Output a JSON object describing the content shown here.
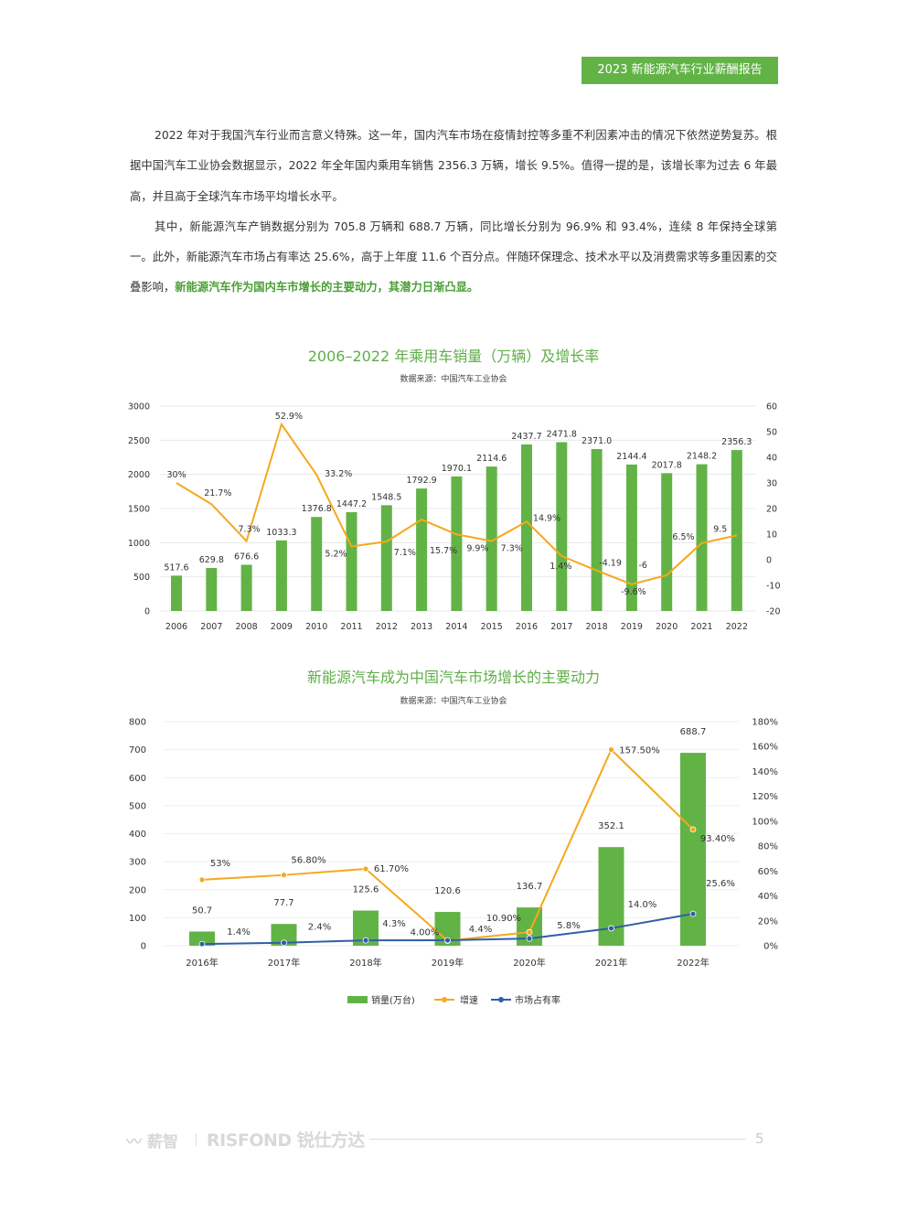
{
  "header": {
    "tag": "2023 新能源汽车行业薪酬报告"
  },
  "body": {
    "para1": "2022 年对于我国汽车行业而言意义特殊。这一年，国内汽车市场在疫情封控等多重不利因素冲击的情况下依然逆势复苏。根据中国汽车工业协会数据显示，2022 年全年国内乘用车销售 2356.3 万辆，增长 9.5%。值得一提的是，该增长率为过去 6 年最高，并且高于全球汽车市场平均增长水平。",
    "para2_plain": "其中，新能源汽车产销数据分别为 705.8 万辆和 688.7 万辆，同比增长分别为 96.9% 和 93.4%，连续 8 年保持全球第一。此外，新能源汽车市场占有率达 25.6%，高于上年度 11.6 个百分点。伴随环保理念、技术水平以及消费需求等多重因素的交叠影响，",
    "para2_bold": "新能源汽车作为国内车市增长的主要动力，其潜力日渐凸显。"
  },
  "colors": {
    "green": "#62b346",
    "orange": "#f5a81c",
    "blue": "#2f5ea8",
    "title_green": "#5fae48"
  },
  "chart_data": [
    {
      "type": "bar+line",
      "title": "2006–2022 年乘用车销量（万辆）及增长率",
      "source": "数据来源：中国汽车工业协会",
      "categories": [
        "2006",
        "2007",
        "2008",
        "2009",
        "2010",
        "2011",
        "2012",
        "2013",
        "2014",
        "2015",
        "2016",
        "2017",
        "2018",
        "2019",
        "2020",
        "2021",
        "2022"
      ],
      "bar_values": [
        517.6,
        629.8,
        676.6,
        1033.3,
        1376.8,
        1447.2,
        1548.5,
        1792.9,
        1970.1,
        2114.6,
        2437.7,
        2471.8,
        2371.0,
        2144.4,
        2017.8,
        2148.2,
        2356.3
      ],
      "bar_labels": [
        "517.6",
        "629.8",
        "676.6",
        "1033.3",
        "1376.8",
        "1447.2",
        "1548.5",
        "1792.9",
        "1970.1",
        "2114.6",
        "2437.7",
        "2471.8",
        "2371.0",
        "2144.4",
        "2017.8",
        "2148.2",
        "2356.3"
      ],
      "line_values": [
        30,
        21.7,
        7.3,
        52.9,
        33.2,
        5.2,
        7.1,
        15.7,
        9.9,
        7.3,
        14.9,
        1.4,
        -4.19,
        -9.6,
        -6,
        6.5,
        9.5
      ],
      "line_labels": [
        "30%",
        "21.7%",
        "7.3%",
        "52.9%",
        "33.2%",
        "5.2%",
        "7.1%",
        "15.7%",
        "9.9%",
        "7.3%",
        "14.9%",
        "1.4%",
        "-4.19",
        "-9.6%",
        "-6",
        "6.5%",
        "9.5"
      ],
      "y_left": {
        "range": [
          0,
          3000
        ],
        "ticks": [
          "0",
          "500",
          "1000",
          "1500",
          "2000",
          "2500",
          "3000"
        ]
      },
      "y_right": {
        "range": [
          -20,
          60
        ],
        "ticks": [
          "-20",
          "-10",
          "0",
          "10",
          "20",
          "30",
          "40",
          "50",
          "60"
        ]
      },
      "grid": true
    },
    {
      "type": "bar+line",
      "title": "新能源汽车成为中国汽车市场增长的主要动力",
      "source": "数据来源：中国汽车工业协会",
      "categories": [
        "2016年",
        "2017年",
        "2018年",
        "2019年",
        "2020年",
        "2021年",
        "2022年"
      ],
      "series": [
        {
          "name": "销量(万台)",
          "type": "bar",
          "axis": "left",
          "values": [
            50.7,
            77.7,
            125.6,
            120.6,
            136.7,
            352.1,
            688.7
          ],
          "labels": [
            "50.7",
            "77.7",
            "125.6",
            "120.6",
            "136.7",
            "352.1",
            "688.7"
          ]
        },
        {
          "name": "增速",
          "type": "line",
          "axis": "right",
          "values": [
            53,
            56.8,
            61.7,
            4.0,
            10.9,
            157.5,
            93.4
          ],
          "labels": [
            "53%",
            "56.80%",
            "61.70%",
            "4.00%",
            "10.90%",
            "157.50%",
            "93.40%"
          ]
        },
        {
          "name": "市场占有率",
          "type": "line",
          "axis": "right",
          "values": [
            1.4,
            2.4,
            4.3,
            4.4,
            5.8,
            14.0,
            25.6
          ],
          "labels": [
            "1.4%",
            "2.4%",
            "4.3%",
            "4.4%",
            "5.8%",
            "14.0%",
            "25.6%"
          ]
        }
      ],
      "y_left": {
        "range": [
          0,
          800
        ],
        "ticks": [
          "0",
          "100",
          "200",
          "300",
          "400",
          "500",
          "600",
          "700",
          "800"
        ]
      },
      "y_right": {
        "range": [
          0,
          180
        ],
        "ticks": [
          "0%",
          "20%",
          "40%",
          "60%",
          "80%",
          "100%",
          "120%",
          "140%",
          "160%",
          "180%"
        ]
      },
      "legend": "bottom",
      "grid": true
    }
  ],
  "footer": {
    "logo1": "薪智",
    "logo2": "RISFOND 锐仕方达",
    "page": "5"
  }
}
